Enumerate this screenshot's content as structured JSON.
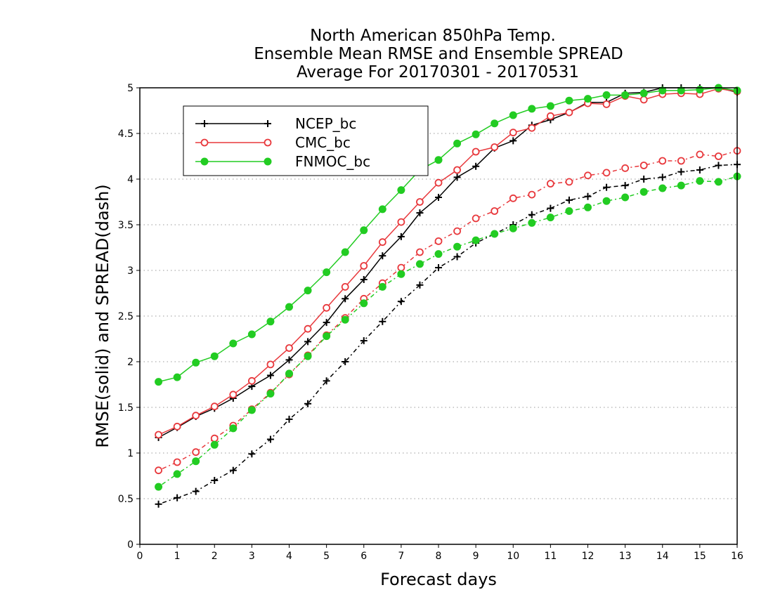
{
  "chart_data": {
    "type": "line",
    "title_lines": [
      "North American 850hPa Temp.",
      "Ensemble Mean RMSE and Ensemble SPREAD",
      "Average For 20170301 - 20170531"
    ],
    "xlabel": "Forecast days",
    "ylabel": "RMSE(solid) and SPREAD(dash)",
    "xlim": [
      0,
      16
    ],
    "ylim": [
      0,
      5
    ],
    "x_ticks": [
      0,
      1,
      2,
      3,
      4,
      5,
      6,
      7,
      8,
      9,
      10,
      11,
      12,
      13,
      14,
      15,
      16
    ],
    "y_ticks": [
      0,
      0.5,
      1,
      1.5,
      2,
      2.5,
      3,
      3.5,
      4,
      4.5,
      5
    ],
    "grid": "horizontal dotted",
    "legend_position": "top-left",
    "x": [
      0.5,
      1,
      1.5,
      2,
      2.5,
      3,
      3.5,
      4,
      4.5,
      5,
      5.5,
      6,
      6.5,
      7,
      7.5,
      8,
      8.5,
      9,
      9.5,
      10,
      10.5,
      11,
      11.5,
      12,
      12.5,
      13,
      13.5,
      14,
      14.5,
      15,
      15.5,
      16
    ],
    "series": [
      {
        "name": "NCEP_bc",
        "color": "#000000",
        "marker": "plus",
        "rmse": [
          1.17,
          1.28,
          1.4,
          1.49,
          1.6,
          1.73,
          1.85,
          2.02,
          2.22,
          2.43,
          2.69,
          2.9,
          3.16,
          3.37,
          3.63,
          3.8,
          4.02,
          4.14,
          4.34,
          4.42,
          4.59,
          4.65,
          4.73,
          4.84,
          4.84,
          4.94,
          4.95,
          5.0,
          5.0,
          5.0,
          5.0,
          4.95
        ],
        "spread": [
          0.44,
          0.51,
          0.58,
          0.7,
          0.81,
          0.99,
          1.15,
          1.37,
          1.54,
          1.79,
          2.0,
          2.23,
          2.44,
          2.66,
          2.84,
          3.03,
          3.15,
          3.3,
          3.4,
          3.5,
          3.61,
          3.68,
          3.77,
          3.81,
          3.91,
          3.93,
          4.0,
          4.02,
          4.08,
          4.1,
          4.15,
          4.16
        ]
      },
      {
        "name": "CMC_bc",
        "color": "#e8383c",
        "marker": "open-circle",
        "rmse": [
          1.2,
          1.29,
          1.41,
          1.51,
          1.64,
          1.79,
          1.97,
          2.15,
          2.36,
          2.59,
          2.82,
          3.05,
          3.31,
          3.53,
          3.75,
          3.96,
          4.1,
          4.3,
          4.35,
          4.51,
          4.56,
          4.69,
          4.73,
          4.83,
          4.82,
          4.91,
          4.87,
          4.93,
          4.94,
          4.93,
          4.99,
          4.96
        ],
        "spread": [
          0.81,
          0.9,
          1.01,
          1.16,
          1.3,
          1.48,
          1.66,
          1.86,
          2.07,
          2.29,
          2.48,
          2.69,
          2.86,
          3.03,
          3.2,
          3.32,
          3.43,
          3.57,
          3.65,
          3.79,
          3.83,
          3.95,
          3.97,
          4.04,
          4.07,
          4.12,
          4.15,
          4.2,
          4.2,
          4.27,
          4.25,
          4.31
        ]
      },
      {
        "name": "FNMOC_bc",
        "color": "#22cc22",
        "marker": "filled-circle",
        "rmse": [
          1.78,
          1.83,
          1.99,
          2.06,
          2.2,
          2.3,
          2.44,
          2.6,
          2.78,
          2.98,
          3.2,
          3.44,
          3.67,
          3.88,
          4.1,
          4.21,
          4.39,
          4.49,
          4.61,
          4.7,
          4.77,
          4.8,
          4.86,
          4.88,
          4.92,
          4.92,
          4.94,
          4.97,
          4.97,
          4.98,
          5.0,
          4.97
        ],
        "spread": [
          0.63,
          0.77,
          0.91,
          1.09,
          1.27,
          1.47,
          1.65,
          1.87,
          2.06,
          2.28,
          2.46,
          2.64,
          2.82,
          2.96,
          3.07,
          3.18,
          3.26,
          3.33,
          3.4,
          3.46,
          3.52,
          3.58,
          3.65,
          3.69,
          3.76,
          3.8,
          3.86,
          3.9,
          3.93,
          3.98,
          3.97,
          4.03
        ]
      }
    ]
  }
}
